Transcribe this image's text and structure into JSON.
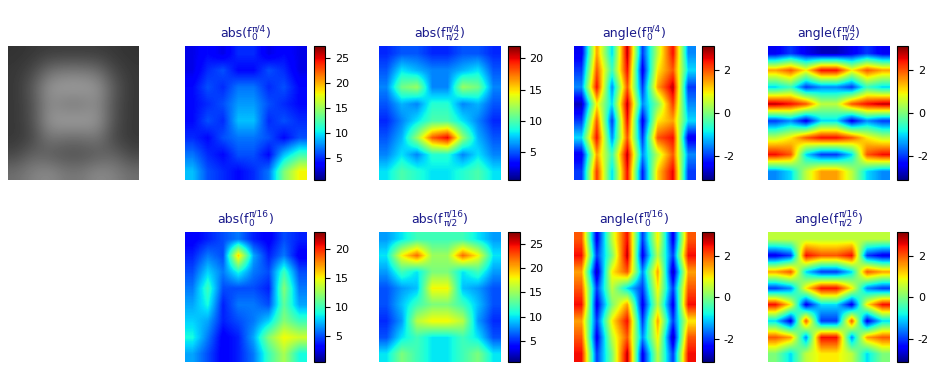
{
  "chart_data": [
    {
      "type": "image",
      "tick_labels": false,
      "clim": [
        0,
        255
      ],
      "cells": [
        [
          50,
          55,
          60,
          60,
          60,
          60,
          55,
          50
        ],
        [
          55,
          70,
          110,
          120,
          120,
          110,
          70,
          55
        ],
        [
          55,
          90,
          150,
          160,
          160,
          150,
          90,
          55
        ],
        [
          55,
          80,
          140,
          120,
          120,
          140,
          80,
          55
        ],
        [
          55,
          80,
          150,
          160,
          160,
          150,
          80,
          55
        ],
        [
          55,
          70,
          120,
          110,
          110,
          120,
          70,
          55
        ],
        [
          70,
          100,
          90,
          80,
          80,
          90,
          100,
          70
        ],
        [
          110,
          130,
          140,
          120,
          120,
          140,
          130,
          110
        ]
      ]
    },
    {
      "type": "heatmap",
      "tick_labels": false,
      "title": {
        "before": "abs(f",
        "sub": "0",
        "sup": "π/4",
        "after": ")"
      },
      "clim": [
        0.5,
        27.5
      ],
      "cticks": [
        5,
        10,
        15,
        20,
        25
      ],
      "cells": [
        [
          3,
          4,
          3,
          5,
          5,
          3,
          4,
          3
        ],
        [
          3,
          5,
          6,
          4,
          4,
          6,
          5,
          3
        ],
        [
          4,
          6,
          5,
          7,
          7,
          5,
          6,
          4
        ],
        [
          4,
          5,
          6,
          8,
          8,
          6,
          5,
          4
        ],
        [
          4,
          6,
          5,
          9,
          9,
          5,
          6,
          5
        ],
        [
          5,
          4,
          6,
          7,
          7,
          6,
          4,
          6
        ],
        [
          7,
          5,
          4,
          6,
          6,
          4,
          9,
          12
        ],
        [
          9,
          6,
          5,
          4,
          5,
          7,
          14,
          18
        ]
      ]
    },
    {
      "type": "heatmap",
      "tick_labels": false,
      "title": {
        "before": "abs(f",
        "sub": "π/2",
        "sup": "π/4",
        "after": ")"
      },
      "clim": [
        0.5,
        22
      ],
      "cticks": [
        5,
        10,
        15,
        20
      ],
      "cells": [
        [
          4,
          5,
          5,
          4,
          4,
          5,
          5,
          4
        ],
        [
          5,
          8,
          7,
          6,
          6,
          7,
          8,
          5
        ],
        [
          6,
          11,
          12,
          6,
          6,
          12,
          11,
          6
        ],
        [
          5,
          7,
          6,
          9,
          9,
          6,
          7,
          5
        ],
        [
          4,
          6,
          8,
          10,
          10,
          8,
          6,
          4
        ],
        [
          5,
          7,
          12,
          18,
          20,
          12,
          7,
          5
        ],
        [
          6,
          8,
          6,
          9,
          9,
          6,
          8,
          6
        ],
        [
          8,
          10,
          9,
          8,
          8,
          9,
          10,
          8
        ]
      ]
    },
    {
      "type": "heatmap",
      "tick_labels": false,
      "title": {
        "before": "angle(f",
        "sub": "0",
        "sup": "π/4",
        "after": ")"
      },
      "clim": [
        -3.14,
        3.14
      ],
      "cticks": [
        -2,
        0,
        2
      ],
      "cells": [
        [
          -2.5,
          1.5,
          -1,
          2.8,
          -2,
          0.5,
          2.5,
          -1.5
        ],
        [
          -2,
          2,
          -0.5,
          2.5,
          -2.5,
          1,
          2,
          -1
        ],
        [
          -1.5,
          2.5,
          -1.5,
          2,
          -2,
          1.5,
          2.8,
          -2
        ],
        [
          -2.8,
          1,
          -1,
          2.8,
          -1.5,
          0,
          2.2,
          -1.5
        ],
        [
          -2,
          2,
          -2,
          2.5,
          -2.5,
          1,
          1.5,
          -1
        ],
        [
          -1,
          2.5,
          -1.5,
          2,
          -2,
          2,
          2.5,
          -2.5
        ],
        [
          -2.5,
          1.5,
          -0.5,
          2.8,
          -1.5,
          0.5,
          2,
          -1.5
        ],
        [
          -2,
          2.2,
          -1,
          2.5,
          -2.2,
          1.2,
          2.6,
          -2
        ]
      ]
    },
    {
      "type": "heatmap",
      "tick_labels": false,
      "title": {
        "before": "angle(f",
        "sub": "π/2",
        "sup": "π/4",
        "after": ")"
      },
      "clim": [
        -3.14,
        3.14
      ],
      "cticks": [
        -2,
        0,
        2
      ],
      "cells": [
        [
          -2.5,
          -2,
          -2.5,
          -2.8,
          -2.8,
          -2.5,
          -2,
          -2.5
        ],
        [
          1.5,
          2,
          1,
          2.5,
          2.5,
          1,
          2,
          1.5
        ],
        [
          -1,
          -0.5,
          -2,
          -1.5,
          -1.5,
          -2,
          -0.5,
          -1
        ],
        [
          2.8,
          2.5,
          2,
          0.5,
          0.5,
          2,
          2.5,
          2.8
        ],
        [
          -2,
          -1.5,
          -2.5,
          -1,
          -1,
          -2.5,
          -1.5,
          -2
        ],
        [
          0.5,
          1,
          2,
          2.5,
          2.5,
          2,
          1,
          0.5
        ],
        [
          2.5,
          2,
          -1,
          -2,
          -2,
          -1,
          2,
          2.5
        ],
        [
          -1.5,
          -1,
          0.5,
          1.5,
          1.5,
          0.5,
          -1,
          -1.5
        ]
      ]
    },
    {
      "type": "heatmap",
      "tick_labels": false,
      "title": {
        "before": "abs(f",
        "sub": "0",
        "sup": "π/16",
        "after": ")"
      },
      "clim": [
        0.5,
        23
      ],
      "cticks": [
        5,
        10,
        15,
        20
      ],
      "cells": [
        [
          3,
          4,
          5,
          6,
          4,
          3,
          5,
          4
        ],
        [
          4,
          6,
          5,
          16,
          7,
          4,
          6,
          3
        ],
        [
          5,
          8,
          6,
          9,
          6,
          5,
          10,
          5
        ],
        [
          6,
          10,
          5,
          5,
          5,
          4,
          12,
          6
        ],
        [
          7,
          9,
          4,
          6,
          6,
          5,
          11,
          7
        ],
        [
          8,
          7,
          4,
          5,
          6,
          8,
          12,
          10
        ],
        [
          9,
          6,
          3,
          4,
          7,
          12,
          15,
          14
        ],
        [
          7,
          5,
          3,
          4,
          6,
          10,
          13,
          9
        ]
      ]
    },
    {
      "type": "heatmap",
      "tick_labels": false,
      "title": {
        "before": "abs(f",
        "sub": "π/2",
        "sup": "π/16",
        "after": ")"
      },
      "clim": [
        0.5,
        27.5
      ],
      "cticks": [
        5,
        10,
        15,
        20,
        25
      ],
      "cells": [
        [
          8,
          10,
          12,
          12,
          12,
          12,
          10,
          8
        ],
        [
          10,
          18,
          22,
          15,
          15,
          22,
          18,
          10
        ],
        [
          8,
          12,
          10,
          14,
          14,
          10,
          12,
          8
        ],
        [
          6,
          8,
          9,
          18,
          18,
          9,
          8,
          6
        ],
        [
          6,
          9,
          12,
          14,
          14,
          12,
          9,
          6
        ],
        [
          5,
          8,
          16,
          18,
          18,
          16,
          8,
          5
        ],
        [
          6,
          10,
          12,
          10,
          10,
          12,
          10,
          6
        ],
        [
          10,
          14,
          12,
          10,
          10,
          12,
          14,
          10
        ]
      ]
    },
    {
      "type": "heatmap",
      "tick_labels": false,
      "title": {
        "before": "angle(f",
        "sub": "0",
        "sup": "π/16",
        "after": ")"
      },
      "clim": [
        -3.14,
        3.14
      ],
      "cticks": [
        -2,
        0,
        2
      ],
      "cells": [
        [
          2,
          -2.5,
          0.5,
          2.5,
          -2,
          1,
          -2.5,
          2
        ],
        [
          2.5,
          -2,
          0,
          2.8,
          -2.5,
          0.5,
          -2,
          2.5
        ],
        [
          1.5,
          -2.8,
          1,
          2,
          -1.5,
          1.5,
          -2.8,
          1.5
        ],
        [
          2,
          -2,
          0.5,
          -1,
          -2,
          1,
          -2,
          2
        ],
        [
          2.5,
          -2.5,
          0,
          1.5,
          -2.5,
          0.5,
          -2.5,
          2.5
        ],
        [
          1.5,
          -2,
          1,
          2.5,
          -2,
          1.5,
          -2,
          1
        ],
        [
          2,
          -2.5,
          0.5,
          2,
          -1.5,
          1,
          -2.8,
          2
        ],
        [
          2.5,
          -2,
          0,
          2.8,
          -2.5,
          0.5,
          -2,
          2.5
        ]
      ]
    },
    {
      "type": "heatmap",
      "tick_labels": false,
      "title": {
        "before": "angle(f",
        "sub": "π/2",
        "sup": "π/16",
        "after": ")"
      },
      "clim": [
        -3.14,
        3.14
      ],
      "cticks": [
        -2,
        0,
        2
      ],
      "cells": [
        [
          0.5,
          0.5,
          0.5,
          0.5,
          0.5,
          0.5,
          0.5,
          0.5
        ],
        [
          -2.5,
          -2,
          2.5,
          2,
          2,
          2.5,
          -2,
          -2.5
        ],
        [
          1.5,
          2,
          -1,
          -2,
          -2,
          -1,
          2,
          1.5
        ],
        [
          -2,
          -1.5,
          1,
          2.5,
          2.5,
          1,
          -1.5,
          -2
        ],
        [
          2.5,
          1,
          -2.5,
          -1,
          -1,
          -2.5,
          1,
          2.5
        ],
        [
          -1,
          -2.5,
          2,
          -2,
          -2,
          2,
          -2.5,
          -1
        ],
        [
          2,
          1.5,
          -1.5,
          2.5,
          2.5,
          -1.5,
          1.5,
          2
        ],
        [
          0,
          -1,
          0.5,
          1,
          1,
          0.5,
          -1,
          0
        ]
      ]
    }
  ]
}
